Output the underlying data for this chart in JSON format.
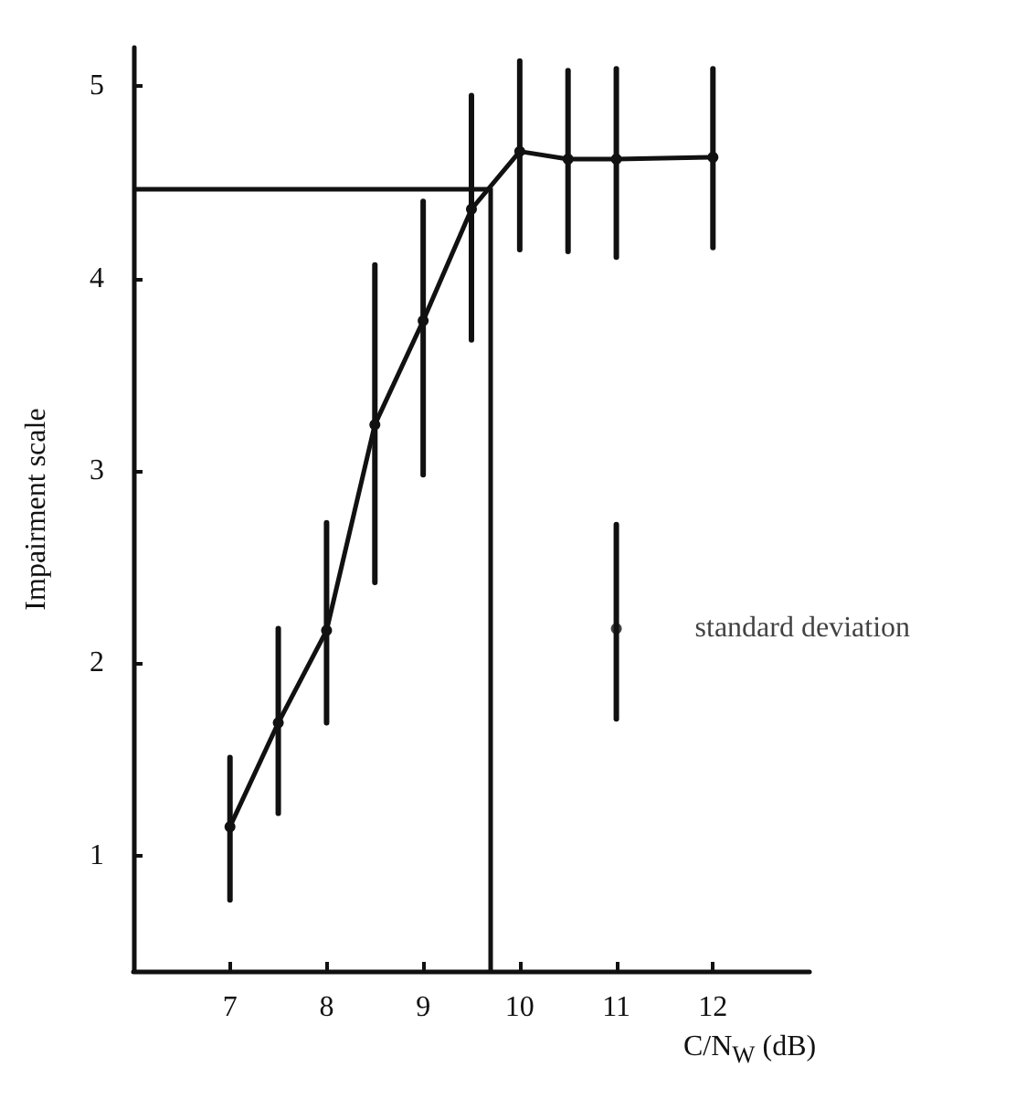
{
  "chart_data": {
    "type": "line",
    "xlabel": "C/N$_{W}$ (dB)",
    "ylabel": "Impairment scale",
    "xlim": [
      6,
      13
    ],
    "xticks": [
      7,
      8,
      9,
      10,
      11,
      12
    ],
    "ylim": [
      0.4,
      5.2
    ],
    "yticks": [
      1,
      2,
      3,
      4,
      5
    ],
    "grid": false,
    "legend": false,
    "marker": "circle",
    "line_style": "solid",
    "series": [
      {
        "color": "#111111",
        "x": [
          7,
          7.5,
          8,
          8.5,
          9,
          9.5,
          10,
          10.5,
          11,
          12
        ],
        "values": [
          1.15,
          1.69,
          2.17,
          3.24,
          3.78,
          4.36,
          4.66,
          4.62,
          4.62,
          4.63
        ],
        "errors": [
          [
            0.77,
            1.51
          ],
          [
            1.22,
            2.18
          ],
          [
            1.69,
            2.73
          ],
          [
            2.42,
            4.07
          ],
          [
            2.98,
            4.4
          ],
          [
            3.68,
            4.95
          ],
          [
            4.15,
            5.13
          ],
          [
            4.14,
            5.08
          ],
          [
            4.11,
            5.09
          ],
          [
            4.16,
            5.09
          ]
        ]
      },
      {
        "type": "scatter",
        "name": "standard deviation",
        "color": "#111111",
        "x": [
          11
        ],
        "values": [
          2.18
        ],
        "errors": [
          [
            1.71,
            2.72
          ]
        ]
      }
    ],
    "ref_lines": [
      {
        "axis": "y",
        "value": 4.47,
        "color": "#111111"
      },
      {
        "axis": "x",
        "value": 9.7,
        "color": "#111111"
      }
    ]
  }
}
